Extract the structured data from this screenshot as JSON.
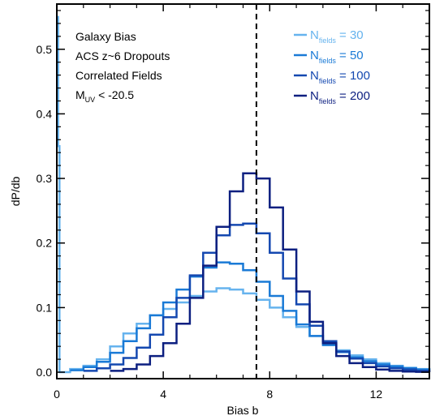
{
  "chart_data": {
    "type": "line",
    "step": true,
    "xlabel": "Bias b",
    "ylabel": "dP/db",
    "xlim": [
      0,
      14
    ],
    "ylim": [
      -0.01,
      0.57
    ],
    "x_ticks": [
      "0",
      "4",
      "8",
      "12"
    ],
    "y_ticks": [
      "0.0",
      "0.1",
      "0.2",
      "0.3",
      "0.4",
      "0.5"
    ],
    "vline_x": 7.5,
    "annotations": {
      "line1": "Galaxy Bias",
      "line2": "ACS z~6 Dropouts",
      "line3": "Correlated Fields",
      "line4_main": "M",
      "line4_sub": "UV",
      "line4_rest": " < -20.5"
    },
    "legend_position": "top-right",
    "series": [
      {
        "name": "N fields = 30",
        "label_main": "N",
        "label_sub": "fields",
        "label_rest": " = 30",
        "color": "#66b3ee",
        "x": [
          0.0,
          0.05,
          0.1,
          0.5,
          1.0,
          1.5,
          2.0,
          2.5,
          3.0,
          3.5,
          4.0,
          4.5,
          5.0,
          5.5,
          6.0,
          6.5,
          7.0,
          7.5,
          8.0,
          8.5,
          9.0,
          9.5,
          10.0,
          10.5,
          11.0,
          11.5,
          12.0,
          12.5,
          13.0,
          13.5,
          14.0
        ],
        "y": [
          0.55,
          0.35,
          0.0,
          0.005,
          0.01,
          0.02,
          0.04,
          0.06,
          0.075,
          0.088,
          0.098,
          0.108,
          0.118,
          0.125,
          0.13,
          0.128,
          0.122,
          0.112,
          0.1,
          0.085,
          0.07,
          0.056,
          0.044,
          0.034,
          0.026,
          0.02,
          0.014,
          0.01,
          0.007,
          0.005,
          0.004
        ]
      },
      {
        "name": "N fields = 50",
        "label_main": "N",
        "label_sub": "fields",
        "label_rest": " = 50",
        "color": "#1a7ad6",
        "x": [
          0.5,
          1.0,
          1.5,
          2.0,
          2.5,
          3.0,
          3.5,
          4.0,
          4.5,
          5.0,
          5.5,
          6.0,
          6.5,
          7.0,
          7.5,
          8.0,
          8.5,
          9.0,
          9.5,
          10.0,
          10.5,
          11.0,
          11.5,
          12.0,
          12.5,
          13.0,
          13.5,
          14.0
        ],
        "y": [
          0.003,
          0.008,
          0.016,
          0.03,
          0.048,
          0.068,
          0.088,
          0.108,
          0.128,
          0.148,
          0.162,
          0.17,
          0.168,
          0.158,
          0.14,
          0.118,
          0.095,
          0.074,
          0.056,
          0.042,
          0.031,
          0.023,
          0.017,
          0.012,
          0.009,
          0.006,
          0.004,
          0.003
        ]
      },
      {
        "name": "N fields = 100",
        "label_main": "N",
        "label_sub": "fields",
        "label_rest": " = 100",
        "color": "#1448b0",
        "x": [
          1.0,
          1.5,
          2.0,
          2.5,
          3.0,
          3.5,
          4.0,
          4.5,
          5.0,
          5.5,
          6.0,
          6.5,
          7.0,
          7.5,
          8.0,
          8.5,
          9.0,
          9.5,
          10.0,
          10.5,
          11.0,
          11.5,
          12.0,
          12.5,
          13.0,
          13.5,
          14.0
        ],
        "y": [
          0.002,
          0.006,
          0.012,
          0.022,
          0.038,
          0.058,
          0.085,
          0.115,
          0.15,
          0.185,
          0.212,
          0.228,
          0.23,
          0.215,
          0.185,
          0.145,
          0.105,
          0.072,
          0.048,
          0.032,
          0.021,
          0.014,
          0.009,
          0.006,
          0.004,
          0.002,
          0.001
        ]
      },
      {
        "name": "N fields = 200",
        "label_main": "N",
        "label_sub": "fields",
        "label_rest": " = 200",
        "color": "#0c1f80",
        "x": [
          2.0,
          2.5,
          3.0,
          3.5,
          4.0,
          4.5,
          5.0,
          5.5,
          6.0,
          6.5,
          7.0,
          7.5,
          8.0,
          8.5,
          9.0,
          9.5,
          10.0,
          10.5,
          11.0,
          11.5,
          12.0,
          12.5,
          13.0,
          13.5,
          14.0
        ],
        "y": [
          0.002,
          0.005,
          0.012,
          0.025,
          0.045,
          0.075,
          0.115,
          0.165,
          0.225,
          0.28,
          0.308,
          0.3,
          0.255,
          0.19,
          0.125,
          0.078,
          0.045,
          0.025,
          0.014,
          0.008,
          0.004,
          0.002,
          0.001,
          0.0005,
          0.0
        ]
      }
    ]
  }
}
